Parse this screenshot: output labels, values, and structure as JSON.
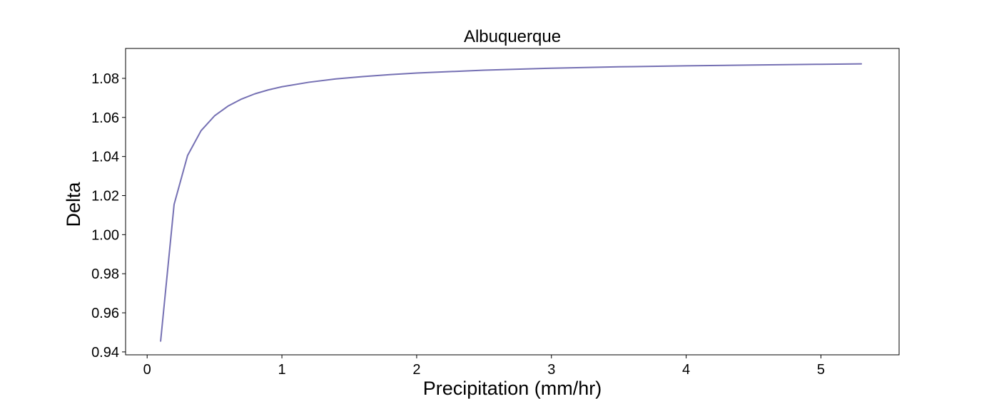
{
  "chart_data": {
    "type": "line",
    "title": "Albuquerque",
    "xlabel": "Precipitation (mm/hr)",
    "ylabel": "Delta",
    "xlim": [
      -0.16,
      5.58
    ],
    "ylim": [
      0.9385,
      1.0953
    ],
    "x_ticks": [
      0,
      1,
      2,
      3,
      4,
      5
    ],
    "y_ticks": [
      0.94,
      0.96,
      0.98,
      1.0,
      1.02,
      1.04,
      1.06,
      1.08
    ],
    "x_tick_labels": [
      "0",
      "1",
      "2",
      "3",
      "4",
      "5"
    ],
    "y_tick_labels": [
      "0.94",
      "0.96",
      "0.98",
      "1.00",
      "1.02",
      "1.04",
      "1.06",
      "1.08"
    ],
    "grid": false,
    "legend": "none",
    "series": [
      {
        "color": "#7570b3",
        "x": [
          0.1,
          0.2,
          0.3,
          0.4,
          0.5,
          0.6,
          0.7,
          0.8,
          0.9,
          1.0,
          1.2,
          1.4,
          1.6,
          1.8,
          2.0,
          2.5,
          3.0,
          3.5,
          4.0,
          4.5,
          5.0,
          5.3
        ],
        "y": [
          0.9455,
          1.0155,
          1.0405,
          1.0532,
          1.0608,
          1.0658,
          1.0694,
          1.0721,
          1.0741,
          1.0757,
          1.078,
          1.0797,
          1.0809,
          1.0819,
          1.0827,
          1.0842,
          1.0852,
          1.0859,
          1.0864,
          1.0868,
          1.0872,
          1.0874
        ]
      }
    ]
  }
}
